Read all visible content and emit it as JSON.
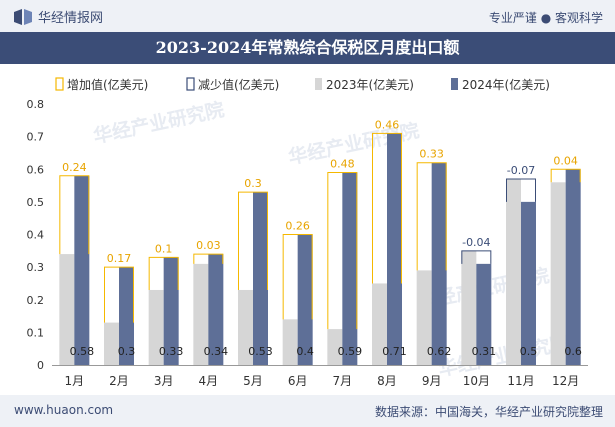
{
  "header": {
    "brand_name": "华经情报网",
    "tagline": "专业严谨 ● 客观科学"
  },
  "footer": {
    "website": "www.huaon.com",
    "source": "数据来源：中国海关，华经产业研究院整理"
  },
  "watermark": "华经产业研究院",
  "colors": {
    "band": "#3b4d77",
    "bar2024": "#5e6f97",
    "bar2023": "#d6d6d6",
    "increase": "#f5b800",
    "decrease": "#3b4d77",
    "header_bg": "#eef1f6"
  },
  "chart_data": {
    "type": "bar",
    "title": "2023-2024年常熟综合保税区月度出口额",
    "categories": [
      "1月",
      "2月",
      "3月",
      "4月",
      "5月",
      "6月",
      "7月",
      "8月",
      "9月",
      "10月",
      "11月",
      "12月"
    ],
    "series": [
      {
        "name": "2023年(亿美元)",
        "values": [
          0.34,
          0.13,
          0.23,
          0.31,
          0.23,
          0.14,
          0.11,
          0.25,
          0.29,
          0.35,
          0.57,
          0.56
        ]
      },
      {
        "name": "2024年(亿美元)",
        "values": [
          0.58,
          0.3,
          0.33,
          0.34,
          0.53,
          0.4,
          0.59,
          0.71,
          0.62,
          0.31,
          0.5,
          0.6
        ]
      }
    ],
    "change": {
      "increase_name": "增加值(亿美元)",
      "decrease_name": "减少值(亿美元)",
      "values": [
        "0.24",
        "0.17",
        "0.1",
        "0.03",
        "0.3",
        "0.26",
        "0.48",
        "0.46",
        "0.33",
        "-0.04",
        "-0.07",
        "0.04"
      ]
    },
    "value_labels_2024": [
      "0.58",
      "0.3",
      "0.33",
      "0.34",
      "0.53",
      "0.4",
      "0.59",
      "0.71",
      "0.62",
      "0.31",
      "0.5",
      "0.6"
    ],
    "yticks": [
      "0",
      "0.1",
      "0.2",
      "0.3",
      "0.4",
      "0.5",
      "0.6",
      "0.7",
      "0.8"
    ],
    "ylim": [
      0,
      0.8
    ],
    "legend_position": "top"
  }
}
